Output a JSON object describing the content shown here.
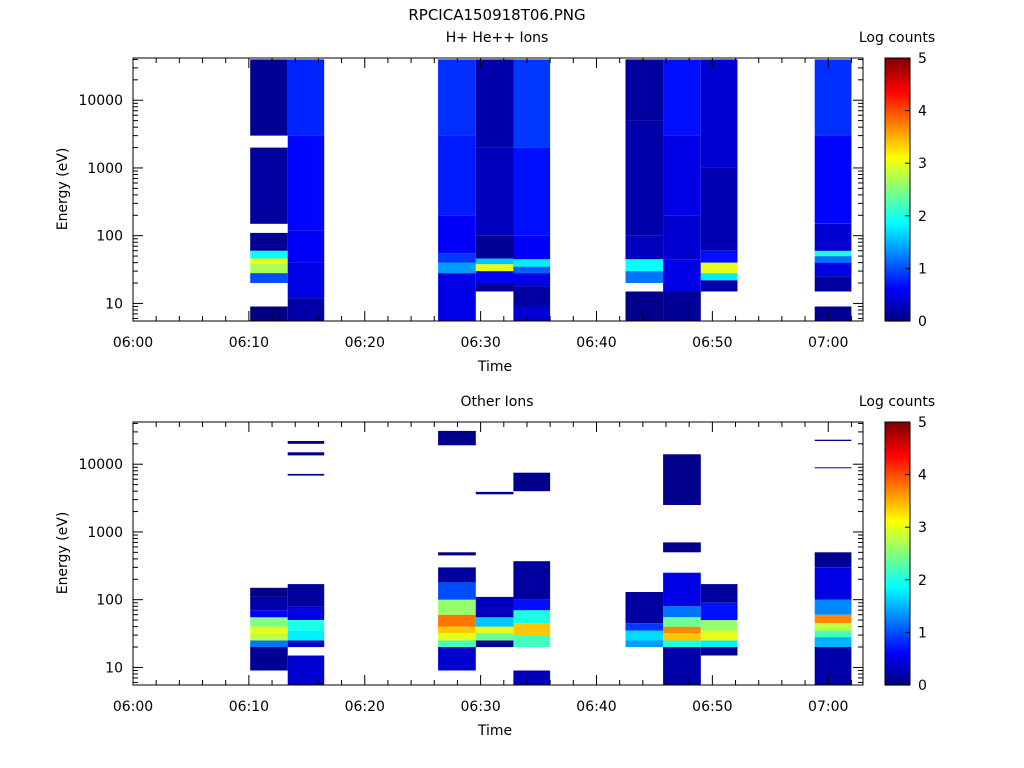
{
  "figure_title": "RPCICA150918T06.PNG",
  "chart_data": [
    {
      "type": "heatmap",
      "title": "H+ He++ Ions",
      "xlabel": "Time",
      "ylabel": "Energy (eV)",
      "colorbar_label": "Log counts",
      "colorbar_ticks": [
        "0",
        "1",
        "2",
        "3",
        "4",
        "5"
      ],
      "xticks": [
        "06:00",
        "06:10",
        "06:20",
        "06:30",
        "06:40",
        "06:50",
        "07:00"
      ],
      "yticks": [
        "10",
        "100",
        "1000",
        "10000"
      ],
      "xlim": [
        "06:00",
        "07:03"
      ],
      "ylim": [
        5.5,
        42000
      ],
      "y_scale": "log",
      "zlim": [
        0,
        5
      ],
      "columns": [
        {
          "start": "06:10:07",
          "end": "06:13:21",
          "bins": [
            [
              5.5,
              9,
              0
            ],
            [
              20,
              28,
              1.0
            ],
            [
              28,
              38,
              2.7
            ],
            [
              38,
              46,
              3.0
            ],
            [
              46,
              60,
              1.9
            ],
            [
              60,
              110,
              0.1
            ],
            [
              150,
              2000,
              0.15
            ],
            [
              3000,
              40000,
              0.1
            ]
          ]
        },
        {
          "start": "06:13:21",
          "end": "06:16:30",
          "bins": [
            [
              5.5,
              12,
              0.2
            ],
            [
              12,
              40,
              0.5
            ],
            [
              40,
              120,
              0.6
            ],
            [
              120,
              3000,
              0.65
            ],
            [
              3000,
              40000,
              0.8
            ]
          ]
        },
        {
          "start": "06:26:20",
          "end": "06:29:35",
          "bins": [
            [
              5.5,
              28,
              0.5
            ],
            [
              28,
              40,
              1.4
            ],
            [
              40,
              55,
              0.9
            ],
            [
              55,
              200,
              0.6
            ],
            [
              200,
              3000,
              0.75
            ],
            [
              3000,
              40000,
              0.85
            ]
          ]
        },
        {
          "start": "06:29:35",
          "end": "06:32:50",
          "bins": [
            [
              15,
              20,
              0.1
            ],
            [
              20,
              30,
              0.6
            ],
            [
              30,
              38,
              3.0
            ],
            [
              38,
              46,
              1.6
            ],
            [
              46,
              100,
              0.1
            ],
            [
              100,
              2000,
              0.3
            ],
            [
              2000,
              40000,
              0.2
            ]
          ]
        },
        {
          "start": "06:32:50",
          "end": "06:36:00",
          "bins": [
            [
              5.5,
              9,
              0.4
            ],
            [
              9,
              18,
              0.15
            ],
            [
              18,
              28,
              0.5
            ],
            [
              28,
              35,
              1.1
            ],
            [
              35,
              45,
              1.8
            ],
            [
              45,
              100,
              0.6
            ],
            [
              100,
              2000,
              0.7
            ],
            [
              2000,
              40000,
              0.9
            ]
          ]
        },
        {
          "start": "06:42:30",
          "end": "06:45:45",
          "bins": [
            [
              5.5,
              15,
              0.05
            ],
            [
              20,
              30,
              1.2
            ],
            [
              30,
              45,
              1.9
            ],
            [
              45,
              100,
              0.3
            ],
            [
              100,
              5000,
              0.2
            ],
            [
              5000,
              40000,
              0.15
            ]
          ]
        },
        {
          "start": "06:45:45",
          "end": "06:49:00",
          "bins": [
            [
              5.5,
              15,
              0.1
            ],
            [
              15,
              45,
              0.5
            ],
            [
              45,
              200,
              0.4
            ],
            [
              200,
              3000,
              0.5
            ],
            [
              3000,
              40000,
              0.7
            ]
          ]
        },
        {
          "start": "06:49:00",
          "end": "06:52:10",
          "bins": [
            [
              15,
              22,
              0.2
            ],
            [
              22,
              28,
              1.8
            ],
            [
              28,
              40,
              3.0
            ],
            [
              40,
              60,
              0.7
            ],
            [
              60,
              1000,
              0.25
            ],
            [
              1000,
              40000,
              0.4
            ]
          ]
        },
        {
          "start": "06:58:50",
          "end": "07:02:00",
          "bins": [
            [
              5.5,
              9,
              0.1
            ],
            [
              15,
              25,
              0.15
            ],
            [
              25,
              40,
              0.5
            ],
            [
              40,
              50,
              1.2
            ],
            [
              50,
              60,
              2.0
            ],
            [
              60,
              150,
              0.4
            ],
            [
              150,
              3000,
              0.65
            ],
            [
              3000,
              40000,
              0.85
            ]
          ]
        }
      ]
    },
    {
      "type": "heatmap",
      "title": "Other Ions",
      "xlabel": "Time",
      "ylabel": "Energy (eV)",
      "colorbar_label": "Log counts",
      "colorbar_ticks": [
        "0",
        "1",
        "2",
        "3",
        "4",
        "5"
      ],
      "xticks": [
        "06:00",
        "06:10",
        "06:20",
        "06:30",
        "06:40",
        "06:50",
        "07:00"
      ],
      "yticks": [
        "10",
        "100",
        "1000",
        "10000"
      ],
      "xlim": [
        "06:00",
        "07:03"
      ],
      "ylim": [
        5.5,
        42000
      ],
      "y_scale": "log",
      "zlim": [
        0,
        5
      ],
      "columns": [
        {
          "start": "06:10:07",
          "end": "06:13:21",
          "bins": [
            [
              9,
              20,
              0.1
            ],
            [
              20,
              25,
              1.2
            ],
            [
              25,
              32,
              2.8
            ],
            [
              32,
              40,
              3.0
            ],
            [
              40,
              55,
              2.5
            ],
            [
              55,
              70,
              0.6
            ],
            [
              70,
              110,
              0.2
            ],
            [
              110,
              150,
              0.05
            ]
          ]
        },
        {
          "start": "06:13:21",
          "end": "06:16:30",
          "bins": [
            [
              5.5,
              15,
              0.4
            ],
            [
              20,
              25,
              0.3
            ],
            [
              25,
              35,
              1.8
            ],
            [
              35,
              50,
              2.0
            ],
            [
              50,
              80,
              0.5
            ],
            [
              80,
              170,
              0.15
            ],
            [
              6800,
              7200,
              0.05
            ],
            [
              13500,
              15000,
              0.05
            ],
            [
              20000,
              22000,
              0.05
            ]
          ]
        },
        {
          "start": "06:26:20",
          "end": "06:29:35",
          "bins": [
            [
              9,
              20,
              0.4
            ],
            [
              20,
              25,
              2.2
            ],
            [
              25,
              32,
              3.0
            ],
            [
              32,
              40,
              3.4
            ],
            [
              40,
              60,
              3.8
            ],
            [
              60,
              100,
              2.6
            ],
            [
              100,
              180,
              1.0
            ],
            [
              180,
              300,
              0.15
            ],
            [
              450,
              500,
              0.05
            ],
            [
              19000,
              31000,
              0.05
            ]
          ]
        },
        {
          "start": "06:29:35",
          "end": "06:32:50",
          "bins": [
            [
              20,
              25,
              0.1
            ],
            [
              25,
              32,
              2.4
            ],
            [
              32,
              40,
              3.0
            ],
            [
              40,
              55,
              1.6
            ],
            [
              55,
              110,
              0.3
            ],
            [
              3600,
              3900,
              0.05
            ]
          ]
        },
        {
          "start": "06:32:50",
          "end": "06:36:00",
          "bins": [
            [
              5.5,
              9,
              0.3
            ],
            [
              20,
              30,
              2.2
            ],
            [
              30,
              45,
              3.4
            ],
            [
              45,
              70,
              2.0
            ],
            [
              70,
              100,
              0.7
            ],
            [
              100,
              370,
              0.15
            ],
            [
              4000,
              7500,
              0.05
            ]
          ]
        },
        {
          "start": "06:42:30",
          "end": "06:45:45",
          "bins": [
            [
              20,
              25,
              1.4
            ],
            [
              25,
              35,
              1.7
            ],
            [
              35,
              45,
              0.9
            ],
            [
              45,
              130,
              0.15
            ]
          ]
        },
        {
          "start": "06:45:45",
          "end": "06:49:00",
          "bins": [
            [
              5.5,
              20,
              0.2
            ],
            [
              20,
              25,
              2.0
            ],
            [
              25,
              32,
              3.4
            ],
            [
              32,
              40,
              3.7
            ],
            [
              40,
              55,
              2.4
            ],
            [
              55,
              80,
              1.2
            ],
            [
              80,
              250,
              0.5
            ],
            [
              500,
              700,
              0.05
            ],
            [
              2500,
              14000,
              0.05
            ]
          ]
        },
        {
          "start": "06:49:00",
          "end": "06:52:10",
          "bins": [
            [
              15,
              20,
              0.1
            ],
            [
              20,
              25,
              1.8
            ],
            [
              25,
              35,
              3.0
            ],
            [
              35,
              50,
              2.6
            ],
            [
              50,
              90,
              0.7
            ],
            [
              90,
              170,
              0.15
            ]
          ]
        },
        {
          "start": "06:58:50",
          "end": "07:02:00",
          "bins": [
            [
              5.5,
              20,
              0.2
            ],
            [
              20,
              28,
              1.5
            ],
            [
              28,
              35,
              2.2
            ],
            [
              35,
              45,
              2.8
            ],
            [
              45,
              60,
              3.7
            ],
            [
              60,
              100,
              1.3
            ],
            [
              100,
              300,
              0.5
            ],
            [
              300,
              500,
              0.1
            ],
            [
              8700,
              9000,
              0.05
            ],
            [
              22000,
              23000,
              0.05
            ]
          ]
        }
      ]
    }
  ]
}
